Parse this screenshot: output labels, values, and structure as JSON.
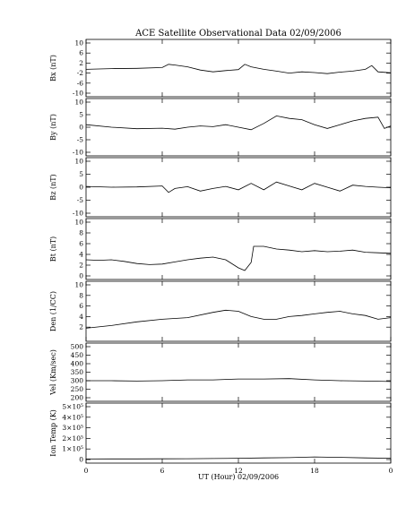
{
  "title": "ACE Satellite Observational Data   02/09/2006",
  "xlabel": "UT (Hour)   02/09/2006",
  "chart_data": [
    {
      "type": "line",
      "ylabel": "Bx (nT)",
      "ylim": [
        -10,
        10
      ],
      "yticks": [
        "-10",
        "-6",
        "-2",
        "2",
        "6",
        "10"
      ],
      "ytick_values": [
        -10,
        -6,
        -2,
        2,
        6,
        10
      ],
      "xlim": [
        0,
        24
      ],
      "series": [
        {
          "x": [
            0,
            2,
            4,
            6,
            6.5,
            7,
            8,
            9,
            10,
            11,
            12,
            12.5,
            13,
            14,
            15,
            16,
            17,
            18,
            19,
            20,
            21,
            22,
            22.5,
            23,
            24
          ],
          "y": [
            -0.5,
            -0.2,
            -0.1,
            0.2,
            1.5,
            1.2,
            0.5,
            -0.8,
            -1.5,
            -1.0,
            -0.6,
            1.5,
            0.5,
            -0.5,
            -1.2,
            -2.0,
            -1.5,
            -1.8,
            -2.2,
            -1.6,
            -1.2,
            -0.5,
            1.0,
            -1.5,
            -1.9
          ]
        }
      ]
    },
    {
      "type": "line",
      "ylabel": "By (nT)",
      "ylim": [
        -10,
        10
      ],
      "yticks": [
        "-10",
        "-5",
        "0",
        "5",
        "10"
      ],
      "ytick_values": [
        -10,
        -5,
        0,
        5,
        10
      ],
      "xlim": [
        0,
        24
      ],
      "series": [
        {
          "x": [
            0,
            2,
            4,
            6,
            7,
            8,
            9,
            10,
            11,
            12,
            13,
            14,
            15,
            16,
            17,
            18,
            19,
            20,
            21,
            22,
            23,
            23.5,
            24
          ],
          "y": [
            1.0,
            0.0,
            -0.6,
            -0.4,
            -0.8,
            0.0,
            0.5,
            0.2,
            1.0,
            0.0,
            -1.0,
            1.5,
            4.5,
            3.5,
            3.0,
            1.0,
            -0.5,
            1.0,
            2.5,
            3.5,
            4.0,
            -0.5,
            0.5
          ]
        }
      ]
    },
    {
      "type": "line",
      "ylabel": "Bz (nT)",
      "ylim": [
        -10,
        10
      ],
      "yticks": [
        "-10",
        "-5",
        "0",
        "5",
        "10"
      ],
      "ytick_values": [
        -10,
        -5,
        0,
        5,
        10
      ],
      "xlim": [
        0,
        24
      ],
      "series": [
        {
          "x": [
            0,
            2,
            4,
            6,
            6.5,
            7,
            8,
            9,
            10,
            11,
            12,
            13,
            14,
            15,
            16,
            17,
            18,
            19,
            20,
            21,
            22,
            23,
            24
          ],
          "y": [
            0.3,
            0.0,
            0.1,
            0.5,
            -2.0,
            -0.5,
            0.2,
            -1.5,
            -0.5,
            0.3,
            -1.0,
            1.5,
            -1.0,
            2.0,
            0.5,
            -1.0,
            1.5,
            0.0,
            -1.5,
            0.8,
            0.3,
            0.0,
            -0.2
          ]
        }
      ]
    },
    {
      "type": "line",
      "ylabel": "Bt (nT)",
      "ylim": [
        0,
        10
      ],
      "yticks": [
        "0",
        "2",
        "4",
        "6",
        "8",
        "10"
      ],
      "ytick_values": [
        0,
        2,
        4,
        6,
        8,
        10
      ],
      "xlim": [
        0,
        24
      ],
      "series": [
        {
          "x": [
            0,
            1,
            2,
            3,
            4,
            5,
            6,
            7,
            8,
            9,
            10,
            11,
            12,
            12.5,
            13,
            13.2,
            14,
            15,
            16,
            17,
            18,
            19,
            20,
            21,
            22,
            23,
            24
          ],
          "y": [
            3.0,
            2.9,
            3.0,
            2.7,
            2.3,
            2.1,
            2.2,
            2.6,
            3.0,
            3.3,
            3.5,
            3.0,
            1.5,
            1.0,
            2.5,
            5.5,
            5.5,
            5.0,
            4.8,
            4.5,
            4.7,
            4.5,
            4.6,
            4.8,
            4.4,
            4.3,
            4.2
          ]
        }
      ]
    },
    {
      "type": "line",
      "ylabel": "Den (1/CC)",
      "ylim": [
        0,
        10
      ],
      "yticks": [
        "2",
        "4",
        "6",
        "8",
        "10"
      ],
      "ytick_values": [
        2,
        4,
        6,
        8,
        10
      ],
      "xlim": [
        0,
        24
      ],
      "series": [
        {
          "x": [
            0,
            2,
            4,
            6,
            8,
            10,
            11,
            12,
            13,
            14,
            15,
            16,
            17,
            18,
            19,
            20,
            21,
            22,
            23,
            24
          ],
          "y": [
            1.8,
            2.3,
            3.0,
            3.5,
            3.8,
            4.8,
            5.2,
            5.0,
            4.0,
            3.5,
            3.5,
            4.0,
            4.2,
            4.5,
            4.8,
            5.0,
            4.5,
            4.2,
            3.5,
            3.8
          ]
        }
      ]
    },
    {
      "type": "line",
      "ylabel": "Vel (Km/sec)",
      "ylim": [
        200,
        500
      ],
      "yticks": [
        "200",
        "250",
        "300",
        "350",
        "400",
        "450",
        "500"
      ],
      "ytick_values": [
        200,
        250,
        300,
        350,
        400,
        450,
        500
      ],
      "xlim": [
        0,
        24
      ],
      "series": [
        {
          "x": [
            0,
            2,
            4,
            6,
            8,
            10,
            12,
            14,
            16,
            18,
            20,
            22,
            24
          ],
          "y": [
            300,
            300,
            298,
            300,
            305,
            305,
            310,
            310,
            312,
            305,
            300,
            298,
            295
          ]
        }
      ]
    },
    {
      "type": "line",
      "ylabel": "Ion Temp (K)",
      "ylim": [
        0,
        500000
      ],
      "yticks": [
        "0",
        "1×10⁵",
        "2×10⁵",
        "3×10⁵",
        "4×10⁵",
        "5×10⁵"
      ],
      "ytick_values": [
        0,
        100000,
        200000,
        300000,
        400000,
        500000
      ],
      "xlim": [
        0,
        24
      ],
      "series": [
        {
          "x": [
            0,
            2,
            4,
            6,
            8,
            10,
            12,
            14,
            16,
            18,
            20,
            22,
            24
          ],
          "y": [
            5000,
            6000,
            6000,
            7000,
            8000,
            9000,
            12000,
            15000,
            18000,
            25000,
            20000,
            15000,
            12000
          ]
        }
      ]
    }
  ],
  "xticks": [
    "0",
    "6",
    "12",
    "18",
    "0"
  ],
  "xtick_values": [
    0,
    6,
    12,
    18,
    24
  ]
}
